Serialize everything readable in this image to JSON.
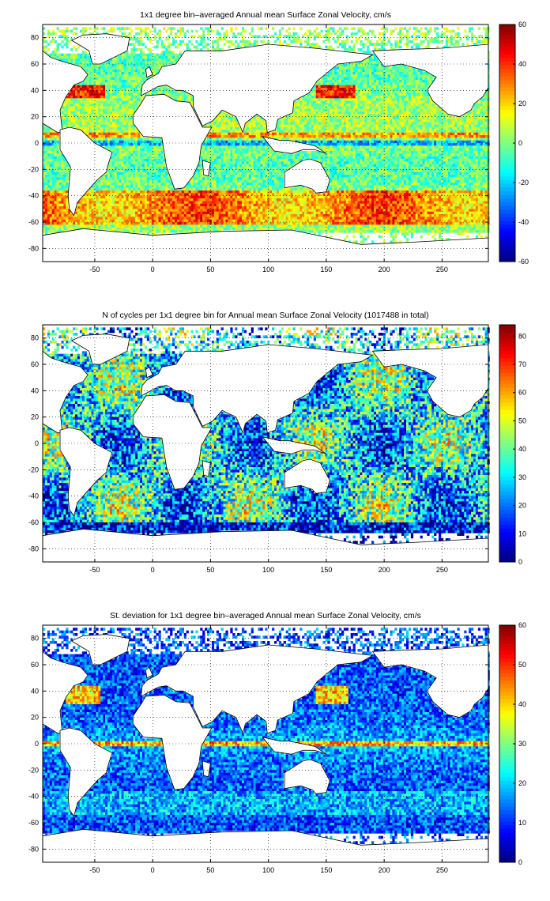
{
  "chart_data": [
    {
      "type": "heatmap",
      "title": "1x1 degree bin–averaged Annual mean Surface Zonal Velocity, cm/s",
      "xlim": [
        -95,
        290
      ],
      "ylim": [
        -90,
        90
      ],
      "xticks": [
        -50,
        0,
        50,
        100,
        150,
        200,
        250
      ],
      "yticks": [
        80,
        60,
        40,
        20,
        0,
        -20,
        -40,
        -60,
        -80
      ],
      "colorbar": {
        "min": -60,
        "max": 60,
        "ticks": [
          60,
          40,
          20,
          0,
          -20,
          -40,
          -60
        ],
        "colormap": "jet"
      },
      "grid": true,
      "field": "zonal-velocity"
    },
    {
      "type": "heatmap",
      "title": "N of cycles per 1x1 degree bin for Annual mean Surface Zonal Velocity (1017488 in total)",
      "xlim": [
        -95,
        290
      ],
      "ylim": [
        -90,
        90
      ],
      "xticks": [
        -50,
        0,
        50,
        100,
        150,
        200,
        250
      ],
      "yticks": [
        80,
        60,
        40,
        20,
        0,
        -20,
        -40,
        -60,
        -80
      ],
      "colorbar": {
        "min": 0,
        "max": 84,
        "ticks": [
          80,
          70,
          60,
          50,
          40,
          30,
          20,
          10,
          0
        ],
        "colormap": "jet"
      },
      "grid": true,
      "field": "cycle-count"
    },
    {
      "type": "heatmap",
      "title": "St. deviation for 1x1 degree bin–averaged Annual mean Surface Zonal Velocity, cm/s",
      "xlim": [
        -95,
        290
      ],
      "ylim": [
        -90,
        90
      ],
      "xticks": [
        -50,
        0,
        50,
        100,
        150,
        200,
        250
      ],
      "yticks": [
        80,
        60,
        40,
        20,
        0,
        -20,
        -40,
        -60,
        -80
      ],
      "colorbar": {
        "min": 0,
        "max": 60,
        "ticks": [
          60,
          50,
          40,
          30,
          20,
          10,
          0
        ],
        "colormap": "jet"
      },
      "grid": true,
      "field": "std-deviation"
    }
  ]
}
